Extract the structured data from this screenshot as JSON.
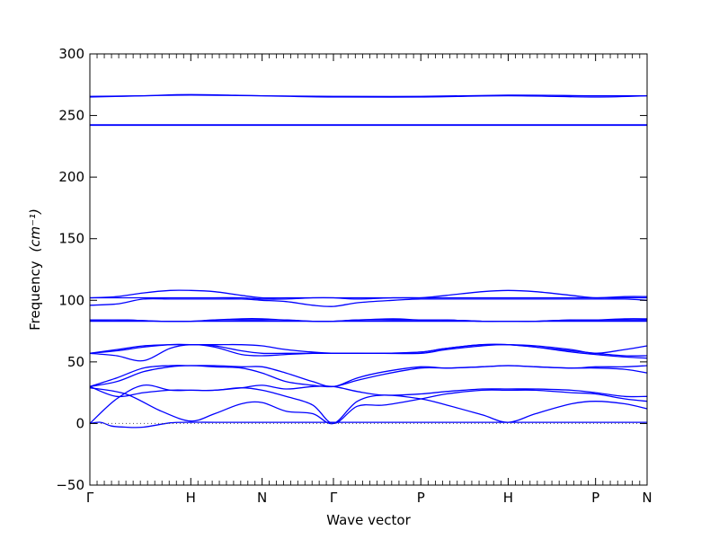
{
  "chart_data": {
    "type": "line",
    "title": "",
    "xlabel": "Wave vector",
    "ylabel": "Frequency",
    "ylabel_unit": "(cm⁻¹)",
    "ylim": [
      -50,
      300
    ],
    "yticks": [
      -50,
      0,
      50,
      100,
      150,
      200,
      250,
      300
    ],
    "xlim": [
      0,
      3.125
    ],
    "high_symmetry_points": [
      {
        "label": "Γ",
        "x": 0.0
      },
      {
        "label": "H",
        "x": 0.566
      },
      {
        "label": "N",
        "x": 0.966
      },
      {
        "label": "Γ",
        "x": 1.366
      },
      {
        "label": "P",
        "x": 1.856
      },
      {
        "label": "H",
        "x": 2.346
      },
      {
        "label": "P",
        "x": 2.836
      },
      {
        "label": "N",
        "x": 3.125
      }
    ],
    "grid": false,
    "legend": "none",
    "zero_line": true,
    "line_color": "#0000ff",
    "series": [
      {
        "x": [
          0,
          0.06,
          0.12,
          0.2,
          0.3,
          0.45,
          0.566,
          0.7,
          0.85,
          0.966,
          1.1,
          1.25,
          1.366,
          1.5,
          1.65,
          1.856,
          2.0,
          2.2,
          2.346,
          2.5,
          2.7,
          2.836,
          3.0,
          3.125
        ],
        "values": [
          0,
          1,
          -2,
          -3,
          -3,
          0.5,
          1,
          1,
          1,
          1,
          1,
          1,
          1,
          1,
          1,
          1,
          1,
          1,
          1,
          1,
          1,
          1,
          1,
          1
        ]
      },
      {
        "x": [
          0,
          0.15,
          0.3,
          0.45,
          0.566,
          0.7,
          0.85,
          0.966,
          1.1,
          1.25,
          1.366,
          1.5,
          1.65,
          1.856,
          2.0,
          2.2,
          2.346,
          2.5,
          2.7,
          2.836,
          3.0,
          3.125
        ],
        "values": [
          0,
          20,
          31,
          27,
          27,
          27,
          29,
          27,
          22,
          15,
          0,
          14,
          15,
          20,
          24,
          27,
          27,
          27,
          25,
          24,
          20,
          18
        ]
      },
      {
        "x": [
          0,
          0.2,
          0.4,
          0.566,
          0.7,
          0.85,
          0.966,
          1.1,
          1.25,
          1.366,
          1.5,
          1.65,
          1.856,
          2.0,
          2.2,
          2.346,
          2.5,
          2.7,
          2.836,
          3.0,
          3.125
        ],
        "values": [
          29,
          24,
          10,
          2,
          8,
          16,
          17,
          10,
          8,
          0,
          18,
          23,
          20,
          15,
          7,
          1,
          8,
          16,
          18,
          16,
          12
        ]
      },
      {
        "x": [
          0,
          0.15,
          0.3,
          0.45,
          0.566,
          0.7,
          0.85,
          0.966,
          1.1,
          1.25,
          1.366,
          1.5,
          1.65,
          1.856,
          2.0,
          2.2,
          2.346,
          2.5,
          2.7,
          2.836,
          3.0,
          3.125
        ],
        "values": [
          30,
          22,
          25,
          27,
          27,
          27,
          29,
          31,
          28,
          30,
          30,
          26,
          23,
          24,
          26,
          28,
          28,
          28,
          27,
          25,
          22,
          22
        ]
      },
      {
        "x": [
          0,
          0.15,
          0.3,
          0.45,
          0.566,
          0.7,
          0.85,
          0.966,
          1.1,
          1.25,
          1.366,
          1.5,
          1.65,
          1.856,
          2.0,
          2.2,
          2.346,
          2.5,
          2.7,
          2.836,
          3.0,
          3.125
        ],
        "values": [
          30,
          34,
          42,
          46,
          47,
          46,
          45,
          41,
          34,
          31,
          30,
          35,
          40,
          45,
          45,
          46,
          47,
          46,
          45,
          45,
          44,
          41
        ]
      },
      {
        "x": [
          0,
          0.15,
          0.3,
          0.45,
          0.566,
          0.7,
          0.85,
          0.966,
          1.1,
          1.25,
          1.366,
          1.5,
          1.65,
          1.856,
          2.0,
          2.2,
          2.346,
          2.5,
          2.7,
          2.836,
          3.0,
          3.125
        ],
        "values": [
          30,
          37,
          45,
          47,
          47,
          47,
          46,
          46,
          41,
          34,
          30,
          37,
          42,
          46,
          45,
          46,
          47,
          46,
          45,
          46,
          46,
          47
        ]
      },
      {
        "x": [
          0,
          0.15,
          0.3,
          0.45,
          0.566,
          0.7,
          0.85,
          0.966,
          1.1,
          1.25,
          1.366,
          1.5,
          1.65,
          1.856,
          2.0,
          2.2,
          2.346,
          2.5,
          2.7,
          2.836,
          3.0,
          3.125
        ],
        "values": [
          57,
          55,
          51,
          61,
          64,
          62,
          56,
          55,
          56,
          57,
          57,
          57,
          57,
          57,
          60,
          63,
          64,
          62,
          58,
          56,
          54,
          53
        ]
      },
      {
        "x": [
          0,
          0.15,
          0.3,
          0.45,
          0.566,
          0.7,
          0.85,
          0.966,
          1.1,
          1.25,
          1.366,
          1.5,
          1.65,
          1.856,
          2.0,
          2.2,
          2.346,
          2.5,
          2.7,
          2.836,
          3.0,
          3.125
        ],
        "values": [
          57,
          59,
          62,
          64,
          64,
          63,
          59,
          57,
          57,
          57,
          57,
          57,
          57,
          58,
          61,
          64,
          64,
          62,
          59,
          57,
          55,
          55
        ]
      },
      {
        "x": [
          0,
          0.15,
          0.3,
          0.45,
          0.566,
          0.7,
          0.85,
          0.966,
          1.1,
          1.25,
          1.366,
          1.5,
          1.65,
          1.856,
          2.0,
          2.2,
          2.346,
          2.5,
          2.7,
          2.836,
          3.0,
          3.125
        ],
        "values": [
          57,
          60,
          63,
          64,
          64,
          64,
          64,
          63,
          60,
          58,
          57,
          57,
          57,
          58,
          61,
          64,
          64,
          63,
          60,
          57,
          60,
          63
        ]
      },
      {
        "x": [
          0,
          0.2,
          0.4,
          0.566,
          0.7,
          0.85,
          0.966,
          1.1,
          1.25,
          1.366,
          1.5,
          1.7,
          1.856,
          2.0,
          2.2,
          2.346,
          2.5,
          2.7,
          2.836,
          3.0,
          3.125
        ],
        "values": [
          83,
          83,
          83,
          83,
          83,
          83,
          83,
          83,
          83,
          83,
          83,
          83,
          83,
          83,
          83,
          83,
          83,
          83,
          83,
          83,
          83
        ]
      },
      {
        "x": [
          0,
          0.2,
          0.4,
          0.566,
          0.7,
          0.85,
          0.966,
          1.1,
          1.25,
          1.366,
          1.5,
          1.7,
          1.856,
          2.0,
          2.2,
          2.346,
          2.5,
          2.7,
          2.836,
          3.0,
          3.125
        ],
        "values": [
          84,
          84,
          83,
          83,
          84,
          85,
          85,
          84,
          83,
          83,
          84,
          85,
          84,
          84,
          83,
          83,
          83,
          84,
          84,
          85,
          85
        ]
      },
      {
        "x": [
          0,
          0.2,
          0.4,
          0.566,
          0.7,
          0.85,
          0.966,
          1.1,
          1.25,
          1.366,
          1.5,
          1.7,
          1.856,
          2.0,
          2.2,
          2.346,
          2.5,
          2.7,
          2.836,
          3.0,
          3.125
        ],
        "values": [
          84,
          84,
          83,
          83,
          84,
          84,
          84,
          84,
          83,
          83,
          84,
          84,
          84,
          84,
          83,
          83,
          83,
          84,
          84,
          84,
          84
        ]
      },
      {
        "x": [
          0,
          0.15,
          0.3,
          0.45,
          0.566,
          0.7,
          0.85,
          0.966,
          1.1,
          1.25,
          1.366,
          1.5,
          1.7,
          1.856,
          2.0,
          2.2,
          2.346,
          2.5,
          2.7,
          2.836,
          3.0,
          3.125
        ],
        "values": [
          96,
          97,
          101,
          101,
          101,
          101,
          101,
          100,
          99,
          96,
          95,
          98,
          100,
          101,
          101,
          101,
          101,
          101,
          101,
          101,
          101,
          100
        ]
      },
      {
        "x": [
          0,
          0.15,
          0.3,
          0.45,
          0.566,
          0.7,
          0.85,
          0.966,
          1.1,
          1.25,
          1.366,
          1.5,
          1.7,
          1.856,
          2.0,
          2.2,
          2.346,
          2.5,
          2.7,
          2.836,
          3.0,
          3.125
        ],
        "values": [
          102,
          102,
          102,
          102,
          102,
          102,
          102,
          101,
          101,
          102,
          102,
          101,
          102,
          102,
          102,
          102,
          102,
          102,
          102,
          102,
          102,
          102
        ]
      },
      {
        "x": [
          0,
          0.15,
          0.3,
          0.45,
          0.566,
          0.7,
          0.85,
          0.966,
          1.1,
          1.25,
          1.366,
          1.5,
          1.7,
          1.856,
          2.0,
          2.2,
          2.346,
          2.5,
          2.7,
          2.836,
          3.0,
          3.125
        ],
        "values": [
          102,
          103,
          106,
          108,
          108,
          107,
          104,
          102,
          102,
          102,
          102,
          102,
          102,
          102,
          104,
          107,
          108,
          107,
          104,
          102,
          103,
          103
        ]
      },
      {
        "x": [
          0,
          0.3,
          0.566,
          0.966,
          1.366,
          1.856,
          2.346,
          2.836,
          3.125
        ],
        "values": [
          242,
          242,
          242,
          242,
          242,
          242,
          242,
          242,
          242
        ]
      },
      {
        "x": [
          0,
          0.3,
          0.566,
          0.966,
          1.366,
          1.856,
          2.346,
          2.836,
          3.125
        ],
        "values": [
          242.5,
          242.5,
          242.5,
          242.5,
          242.5,
          242.5,
          242.5,
          242.5,
          242.5
        ]
      },
      {
        "x": [
          0,
          0.3,
          0.566,
          0.966,
          1.366,
          1.856,
          2.346,
          2.836,
          3.125
        ],
        "values": [
          265,
          266,
          267,
          266,
          265,
          265,
          266,
          265,
          266
        ]
      },
      {
        "x": [
          0,
          0.3,
          0.566,
          0.966,
          1.366,
          1.856,
          2.346,
          2.836,
          3.125
        ],
        "values": [
          265.5,
          266,
          266.5,
          266,
          265.5,
          265.5,
          266.5,
          266,
          266
        ]
      }
    ]
  }
}
